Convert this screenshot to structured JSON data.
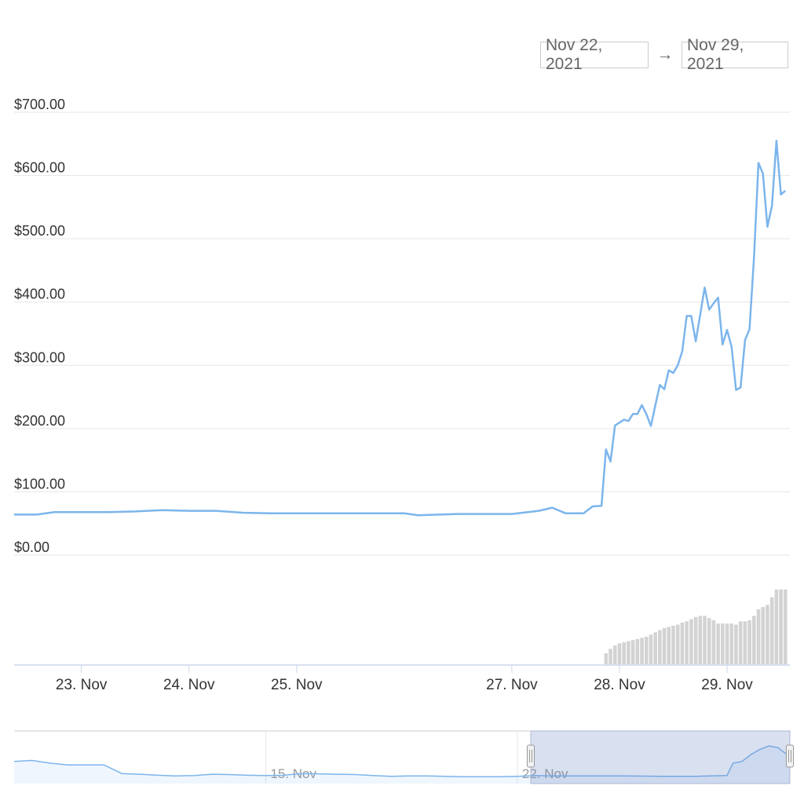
{
  "date_range": {
    "from": "Nov 22, 2021",
    "arrow": "→",
    "to": "Nov 29, 2021"
  },
  "chart_data": {
    "type": "line",
    "y_axis": {
      "range": [
        0,
        700
      ],
      "ticks": [
        0,
        100,
        200,
        300,
        400,
        500,
        600,
        700
      ],
      "tick_labels": [
        "$0.00",
        "$100.00",
        "$200.00",
        "$300.00",
        "$400.00",
        "$500.00",
        "$600.00",
        "$700.00"
      ],
      "grid": true
    },
    "x_axis": {
      "range": [
        "2021-11-22T09:00",
        "2021-11-29T14:00"
      ],
      "tick_labels": [
        {
          "at": "2021-11-23",
          "label": "23. Nov"
        },
        {
          "at": "2021-11-24",
          "label": "24. Nov"
        },
        {
          "at": "2021-11-25",
          "label": "25. Nov"
        },
        {
          "at": "2021-11-27",
          "label": "27. Nov"
        },
        {
          "at": "2021-11-28",
          "label": "28. Nov"
        },
        {
          "at": "2021-11-29",
          "label": "29. Nov"
        }
      ]
    },
    "series": [
      {
        "type": "line",
        "color": "#7cb5ec",
        "points": [
          [
            "2021-11-22T09:00",
            64
          ],
          [
            "2021-11-22T14:00",
            64
          ],
          [
            "2021-11-22T18:00",
            68
          ],
          [
            "2021-11-23T00:00",
            68
          ],
          [
            "2021-11-23T06:00",
            68
          ],
          [
            "2021-11-23T12:00",
            69
          ],
          [
            "2021-11-23T18:00",
            71
          ],
          [
            "2021-11-24T00:00",
            70
          ],
          [
            "2021-11-24T06:00",
            70
          ],
          [
            "2021-11-24T12:00",
            67
          ],
          [
            "2021-11-24T18:00",
            66
          ],
          [
            "2021-11-25T00:00",
            66
          ],
          [
            "2021-11-25T12:00",
            66
          ],
          [
            "2021-11-26T00:00",
            66
          ],
          [
            "2021-11-26T03:00",
            63
          ],
          [
            "2021-11-26T12:00",
            65
          ],
          [
            "2021-11-27T00:00",
            65
          ],
          [
            "2021-11-27T06:00",
            70
          ],
          [
            "2021-11-27T09:00",
            75
          ],
          [
            "2021-11-27T12:00",
            66
          ],
          [
            "2021-11-27T16:00",
            66
          ],
          [
            "2021-11-27T18:00",
            77
          ],
          [
            "2021-11-27T20:00",
            78
          ],
          [
            "2021-11-27T21:00",
            167
          ],
          [
            "2021-11-27T22:00",
            148
          ],
          [
            "2021-11-27T23:00",
            205
          ],
          [
            "2021-11-28T01:00",
            214
          ],
          [
            "2021-11-28T02:00",
            212
          ],
          [
            "2021-11-28T03:00",
            223
          ],
          [
            "2021-11-28T04:00",
            223
          ],
          [
            "2021-11-28T05:00",
            237
          ],
          [
            "2021-11-28T06:00",
            223
          ],
          [
            "2021-11-28T07:00",
            204
          ],
          [
            "2021-11-28T08:00",
            237
          ],
          [
            "2021-11-28T09:00",
            269
          ],
          [
            "2021-11-28T10:00",
            262
          ],
          [
            "2021-11-28T11:00",
            292
          ],
          [
            "2021-11-28T12:00",
            288
          ],
          [
            "2021-11-28T13:00",
            300
          ],
          [
            "2021-11-28T14:00",
            322
          ],
          [
            "2021-11-28T15:00",
            378
          ],
          [
            "2021-11-28T16:00",
            378
          ],
          [
            "2021-11-28T17:00",
            338
          ],
          [
            "2021-11-28T18:00",
            380
          ],
          [
            "2021-11-28T19:00",
            423
          ],
          [
            "2021-11-28T20:00",
            388
          ],
          [
            "2021-11-28T21:00",
            398
          ],
          [
            "2021-11-28T22:00",
            407
          ],
          [
            "2021-11-28T23:00",
            333
          ],
          [
            "2021-11-29T00:00",
            356
          ],
          [
            "2021-11-29T01:00",
            329
          ],
          [
            "2021-11-29T02:00",
            261
          ],
          [
            "2021-11-29T03:00",
            265
          ],
          [
            "2021-11-29T04:00",
            340
          ],
          [
            "2021-11-29T05:00",
            357
          ],
          [
            "2021-11-29T06:00",
            470
          ],
          [
            "2021-11-29T07:00",
            620
          ],
          [
            "2021-11-29T08:00",
            603
          ],
          [
            "2021-11-29T09:00",
            519
          ],
          [
            "2021-11-29T10:00",
            552
          ],
          [
            "2021-11-29T11:00",
            655
          ],
          [
            "2021-11-29T12:00",
            570
          ],
          [
            "2021-11-29T13:00",
            576
          ]
        ]
      },
      {
        "type": "column",
        "color": "#d3d3d3",
        "points": [
          [
            "2021-11-27T21:00",
            0.1
          ],
          [
            "2021-11-27T22:00",
            0.14
          ],
          [
            "2021-11-27T23:00",
            0.17
          ],
          [
            "2021-11-28T00:00",
            0.19
          ],
          [
            "2021-11-28T01:00",
            0.2
          ],
          [
            "2021-11-28T02:00",
            0.21
          ],
          [
            "2021-11-28T03:00",
            0.22
          ],
          [
            "2021-11-28T04:00",
            0.23
          ],
          [
            "2021-11-28T05:00",
            0.24
          ],
          [
            "2021-11-28T06:00",
            0.25
          ],
          [
            "2021-11-28T07:00",
            0.27
          ],
          [
            "2021-11-28T08:00",
            0.29
          ],
          [
            "2021-11-28T09:00",
            0.31
          ],
          [
            "2021-11-28T10:00",
            0.33
          ],
          [
            "2021-11-28T11:00",
            0.34
          ],
          [
            "2021-11-28T12:00",
            0.35
          ],
          [
            "2021-11-28T13:00",
            0.36
          ],
          [
            "2021-11-28T14:00",
            0.38
          ],
          [
            "2021-11-28T15:00",
            0.39
          ],
          [
            "2021-11-28T16:00",
            0.41
          ],
          [
            "2021-11-28T17:00",
            0.43
          ],
          [
            "2021-11-28T18:00",
            0.44
          ],
          [
            "2021-11-28T19:00",
            0.44
          ],
          [
            "2021-11-28T20:00",
            0.42
          ],
          [
            "2021-11-28T21:00",
            0.4
          ],
          [
            "2021-11-28T22:00",
            0.37
          ],
          [
            "2021-11-28T23:00",
            0.37
          ],
          [
            "2021-11-29T00:00",
            0.37
          ],
          [
            "2021-11-29T01:00",
            0.37
          ],
          [
            "2021-11-29T02:00",
            0.36
          ],
          [
            "2021-11-29T03:00",
            0.39
          ],
          [
            "2021-11-29T04:00",
            0.39
          ],
          [
            "2021-11-29T05:00",
            0.4
          ],
          [
            "2021-11-29T06:00",
            0.44
          ],
          [
            "2021-11-29T07:00",
            0.5
          ],
          [
            "2021-11-29T08:00",
            0.52
          ],
          [
            "2021-11-29T09:00",
            0.54
          ],
          [
            "2021-11-29T10:00",
            0.61
          ],
          [
            "2021-11-29T11:00",
            0.68
          ],
          [
            "2021-11-29T12:00",
            0.68
          ],
          [
            "2021-11-29T13:00",
            0.68
          ]
        ]
      }
    ],
    "navigator": {
      "tick_labels": [
        "15. Nov",
        "22. Nov"
      ],
      "selected_range": [
        "2021-11-22T09:00",
        "2021-11-29T14:00"
      ],
      "points": [
        [
          "2021-11-08T00:00",
          0.55
        ],
        [
          "2021-11-08T12:00",
          0.58
        ],
        [
          "2021-11-09T00:00",
          0.5
        ],
        [
          "2021-11-09T12:00",
          0.45
        ],
        [
          "2021-11-10T00:00",
          0.45
        ],
        [
          "2021-11-10T12:00",
          0.45
        ],
        [
          "2021-11-11T00:00",
          0.2
        ],
        [
          "2021-11-11T12:00",
          0.18
        ],
        [
          "2021-11-12T00:00",
          0.15
        ],
        [
          "2021-11-12T12:00",
          0.13
        ],
        [
          "2021-11-13T00:00",
          0.14
        ],
        [
          "2021-11-13T12:00",
          0.18
        ],
        [
          "2021-11-14T00:00",
          0.17
        ],
        [
          "2021-11-14T12:00",
          0.15
        ],
        [
          "2021-11-15T00:00",
          0.14
        ],
        [
          "2021-11-15T12:00",
          0.15
        ],
        [
          "2021-11-16T00:00",
          0.2
        ],
        [
          "2021-11-16T12:00",
          0.19
        ],
        [
          "2021-11-17T00:00",
          0.18
        ],
        [
          "2021-11-17T12:00",
          0.17
        ],
        [
          "2021-11-18T00:00",
          0.14
        ],
        [
          "2021-11-18T12:00",
          0.12
        ],
        [
          "2021-11-19T00:00",
          0.13
        ],
        [
          "2021-11-19T12:00",
          0.13
        ],
        [
          "2021-11-20T00:00",
          0.12
        ],
        [
          "2021-11-20T12:00",
          0.11
        ],
        [
          "2021-11-21T00:00",
          0.11
        ],
        [
          "2021-11-21T12:00",
          0.11
        ],
        [
          "2021-11-22T00:00",
          0.12
        ],
        [
          "2021-11-22T12:00",
          0.14
        ],
        [
          "2021-11-23T00:00",
          0.13
        ],
        [
          "2021-11-24T00:00",
          0.13
        ],
        [
          "2021-11-25T00:00",
          0.13
        ],
        [
          "2021-11-26T00:00",
          0.12
        ],
        [
          "2021-11-27T00:00",
          0.12
        ],
        [
          "2021-11-27T20:00",
          0.14
        ],
        [
          "2021-11-28T00:00",
          0.5
        ],
        [
          "2021-11-28T06:00",
          0.55
        ],
        [
          "2021-11-28T12:00",
          0.75
        ],
        [
          "2021-11-28T18:00",
          0.9
        ],
        [
          "2021-11-29T00:00",
          1.0
        ],
        [
          "2021-11-29T06:00",
          0.95
        ],
        [
          "2021-11-29T12:00",
          0.75
        ],
        [
          "2021-11-29T14:00",
          0.8
        ]
      ]
    }
  }
}
